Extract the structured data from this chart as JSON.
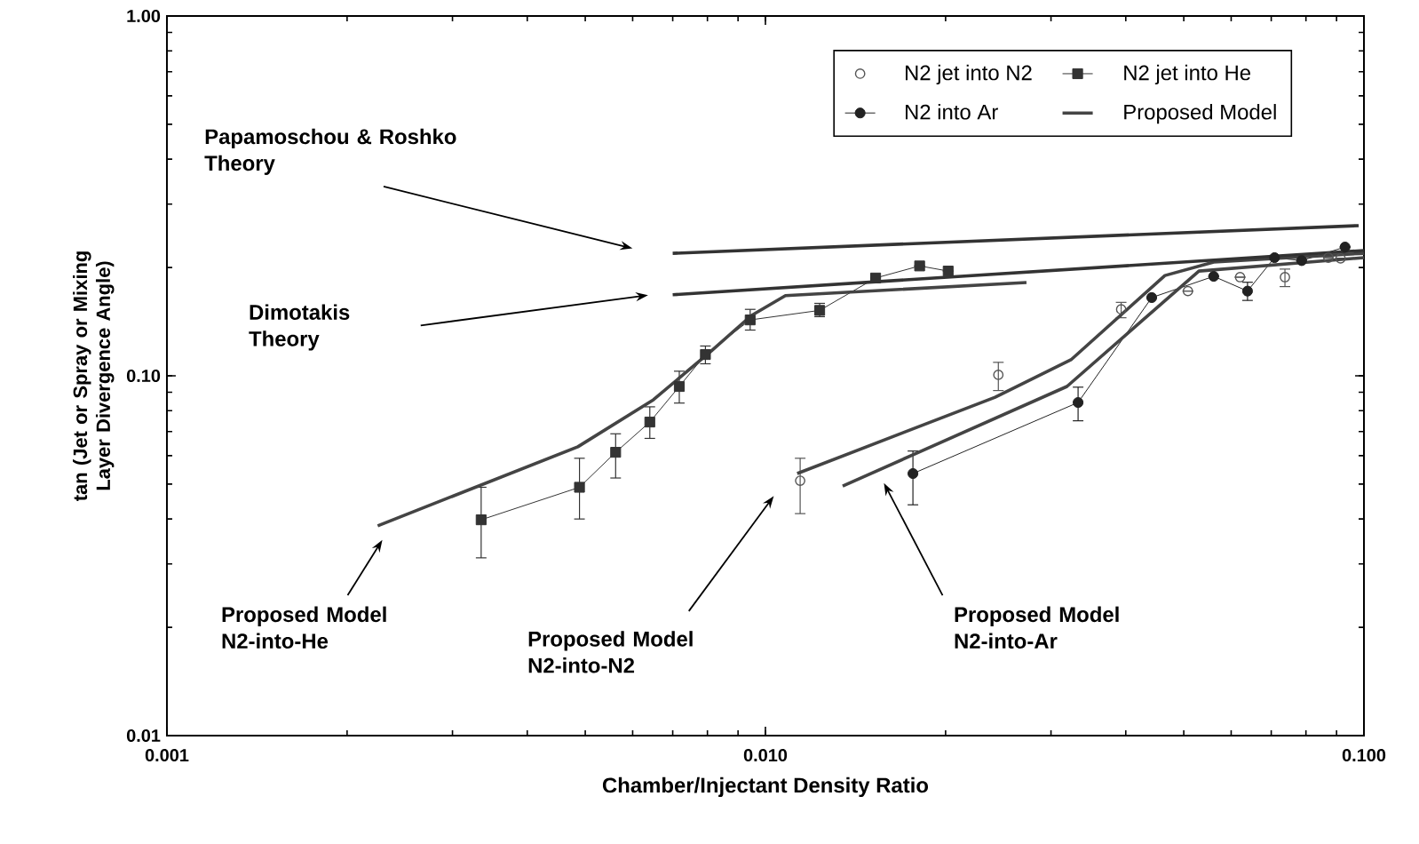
{
  "chart_data": {
    "type": "line",
    "xlabel": "Chamber/Injectant Density Ratio",
    "ylabel": "tan (Jet or Spray or Mixing Layer Divergence Angle)",
    "log": "xy",
    "xlim": [
      0.001,
      0.1
    ],
    "ylim": [
      0.01,
      1.0
    ],
    "xticks": [
      {
        "value": 0.001,
        "label": "0.001"
      },
      {
        "value": 0.01,
        "label": "0.010"
      },
      {
        "value": 0.1,
        "label": "0.100"
      }
    ],
    "yticks": [
      {
        "value": 0.01,
        "label": "0.01"
      },
      {
        "value": 0.1,
        "label": "0.10"
      },
      {
        "value": 1.0,
        "label": "1.00"
      }
    ],
    "legend": "top right",
    "grid": false,
    "series": [
      {
        "name": "N2 jet into N2",
        "type": "scatter",
        "marker": "circle",
        "color": "#555555",
        "x": [
          0.01143,
          0.0245,
          0.0393,
          0.0508,
          0.0621,
          0.0738,
          0.0872,
          0.0914
        ],
        "values": [
          0.0511,
          0.1006,
          0.153,
          0.172,
          0.188,
          0.188,
          0.213,
          0.212
        ],
        "errors": [
          [
            0.0414,
            0.059
          ],
          [
            0.091,
            0.109
          ],
          [
            0.145,
            0.16
          ],
          null,
          null,
          [
            0.177,
            0.198
          ],
          null,
          null
        ]
      },
      {
        "name": "N2 jet into He",
        "marker": "square",
        "color": "#333333",
        "x": [
          0.00335,
          0.00489,
          0.00562,
          0.00641,
          0.00718,
          0.00794,
          0.00943,
          0.01232,
          0.01528,
          0.0181,
          0.0202
        ],
        "values": [
          0.0398,
          0.049,
          0.0613,
          0.0744,
          0.0934,
          0.1146,
          0.143,
          0.152,
          0.187,
          0.202,
          0.1955
        ],
        "errors": [
          [
            0.0312,
            0.049
          ],
          [
            0.04,
            0.059
          ],
          [
            0.052,
            0.069
          ],
          [
            0.067,
            0.082
          ],
          [
            0.084,
            0.103
          ],
          [
            0.108,
            0.121
          ],
          [
            0.134,
            0.153
          ],
          [
            0.146,
            0.159
          ],
          null,
          null,
          null
        ]
      },
      {
        "name": "N2 into Ar",
        "marker": "circle",
        "color": "#222222",
        "x": [
          0.01764,
          0.0333,
          0.0442,
          0.0561,
          0.0639,
          0.0709,
          0.0787,
          0.093
        ],
        "values": [
          0.0535,
          0.0843,
          0.165,
          0.189,
          0.172,
          0.213,
          0.209,
          0.228
        ],
        "errors": [
          [
            0.0438,
            0.0618
          ],
          [
            0.075,
            0.093
          ],
          null,
          null,
          [
            0.162,
            0.182
          ],
          null,
          null,
          null
        ]
      },
      {
        "name": "Proposed Model",
        "marker": "none",
        "color": "#444444",
        "x": [
          0.00225,
          0.00486,
          0.0065,
          0.00811,
          0.00947,
          0.0108,
          0.0273
        ],
        "values": [
          0.0383,
          0.0635,
          0.0858,
          0.117,
          0.147,
          0.167,
          0.1816
        ]
      },
      {
        "marker": "none",
        "color": "#444444",
        "x": [
          0.0113,
          0.0242,
          0.0324,
          0.0465,
          0.0561,
          0.1
        ],
        "values": [
          0.0535,
          0.0872,
          0.1108,
          0.19,
          0.207,
          0.219
        ]
      },
      {
        "marker": "none",
        "color": "#444444",
        "x": [
          0.01346,
          0.0319,
          0.0419,
          0.053,
          0.1
        ],
        "values": [
          0.0494,
          0.0934,
          0.139,
          0.1955,
          0.213
        ]
      },
      {
        "marker": "none",
        "color": "#333333",
        "x": [
          0.007,
          0.098
        ],
        "values": [
          0.219,
          0.2615
        ]
      },
      {
        "marker": "none",
        "color": "#333333",
        "x": [
          0.007,
          0.1
        ],
        "values": [
          0.168,
          0.223
        ]
      }
    ],
    "annotations": [
      "Papamoschou & Roshko Theory",
      "Dimotakis Theory",
      "Proposed Model N2-into-He",
      "Proposed Model N2-into-N2",
      "Proposed Model N2-into-Ar"
    ]
  }
}
